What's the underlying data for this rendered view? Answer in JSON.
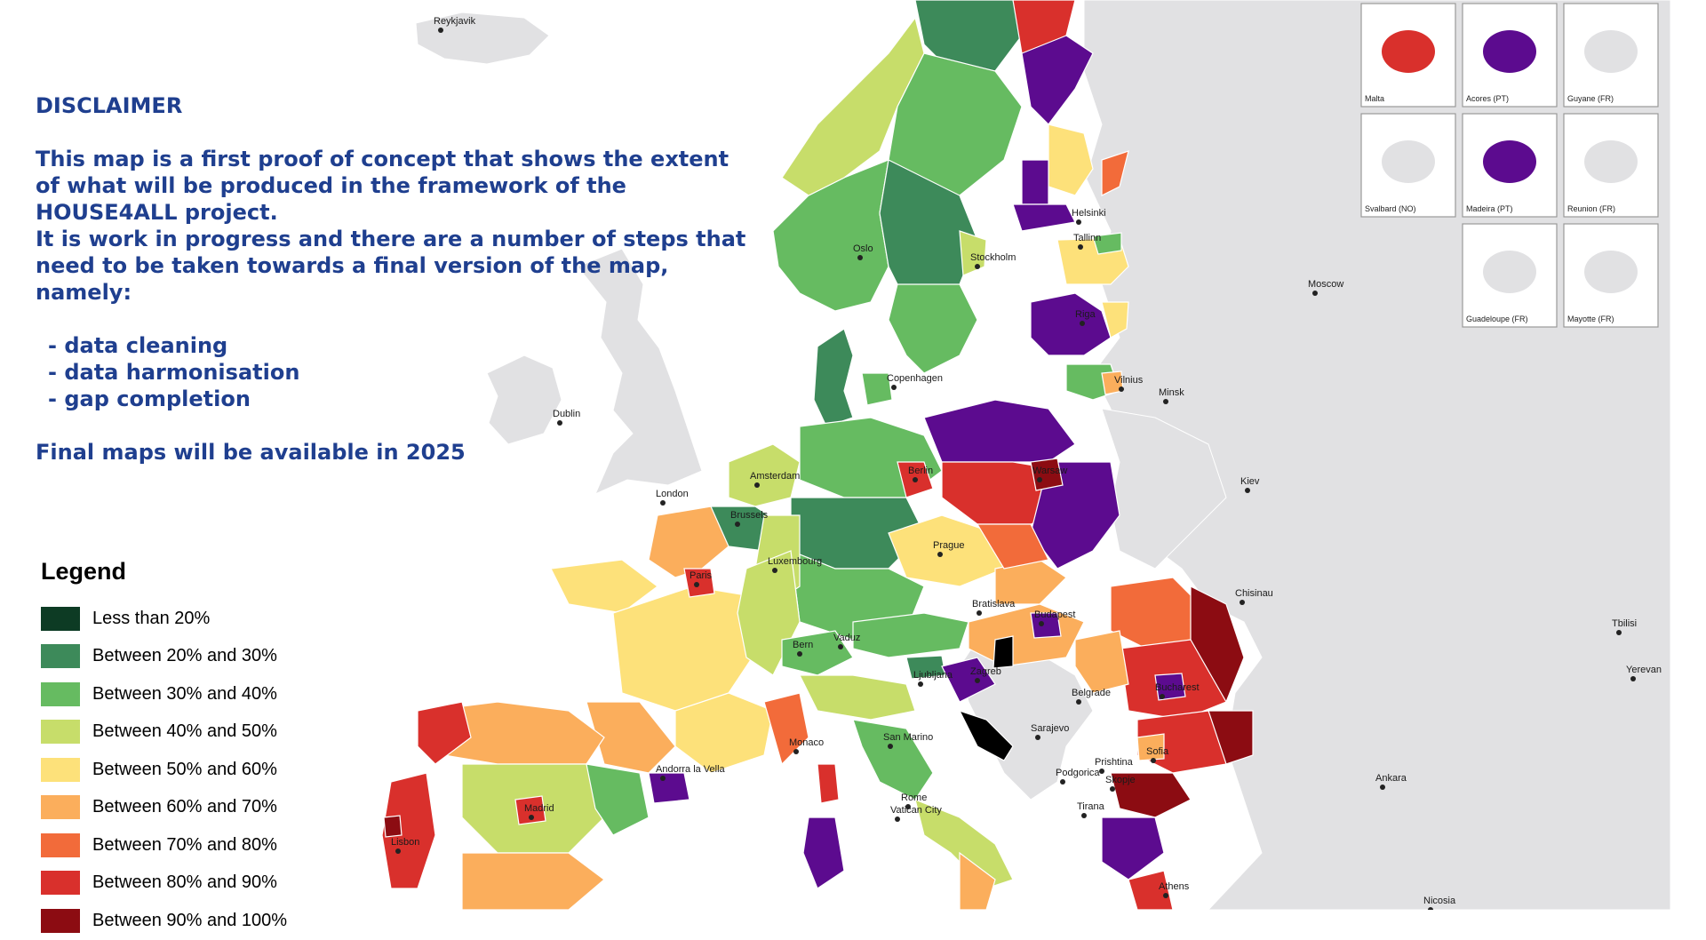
{
  "disclaimer": {
    "title": "DISCLAIMER",
    "lines": [
      "This map is a first proof of concept that shows the extent",
      "of what will be produced in the framework of the",
      "HOUSE4ALL project.",
      "It is work in progress and there are a number of steps that",
      "need to be taken towards a final version of the map,",
      "namely:"
    ],
    "steps": [
      "data cleaning",
      "data harmonisation",
      "gap completion"
    ],
    "final_note": "Final maps will be available in 2025"
  },
  "legend": {
    "title": "Legend",
    "items": [
      {
        "label": "Less than 20%",
        "color": "#0d3b24"
      },
      {
        "label": "Between 20% and 30%",
        "color": "#3d8a5a"
      },
      {
        "label": "Between 30% and 40%",
        "color": "#66bb61"
      },
      {
        "label": "Between 40% and 50%",
        "color": "#c7dd6a"
      },
      {
        "label": "Between 50% and 60%",
        "color": "#fde17a"
      },
      {
        "label": "Between 60% and 70%",
        "color": "#fbae5c"
      },
      {
        "label": "Between 70% and 80%",
        "color": "#f26b3a"
      },
      {
        "label": "Between 80% and 90%",
        "color": "#d9302c"
      },
      {
        "label": "Between 90% and 100%",
        "color": "#8c0c12"
      }
    ]
  },
  "colors": {
    "sea": "#ffffff",
    "land_nodata": "#e1e1e3",
    "border": "#ffffff",
    "text": "#1f3f8f",
    "purple": "#5c0b8f",
    "black": "#000000"
  },
  "cities": [
    {
      "name": "Reykjavik"
    },
    {
      "name": "Oslo"
    },
    {
      "name": "Stockholm"
    },
    {
      "name": "Helsinki"
    },
    {
      "name": "Tallinn"
    },
    {
      "name": "Riga"
    },
    {
      "name": "Moscow"
    },
    {
      "name": "Vilnius"
    },
    {
      "name": "Minsk"
    },
    {
      "name": "Copenhagen"
    },
    {
      "name": "Dublin"
    },
    {
      "name": "London"
    },
    {
      "name": "Amsterdam"
    },
    {
      "name": "Berlin"
    },
    {
      "name": "Warsaw"
    },
    {
      "name": "Kiev"
    },
    {
      "name": "Brussels"
    },
    {
      "name": "Luxembourg"
    },
    {
      "name": "Prague"
    },
    {
      "name": "Paris"
    },
    {
      "name": "Chisinau"
    },
    {
      "name": "Bratislava"
    },
    {
      "name": "Budapest"
    },
    {
      "name": "Vaduz"
    },
    {
      "name": "Bern"
    },
    {
      "name": "Ljubljana"
    },
    {
      "name": "Zagreb"
    },
    {
      "name": "Belgrade"
    },
    {
      "name": "Bucharest"
    },
    {
      "name": "Tbilisi"
    },
    {
      "name": "Yerevan"
    },
    {
      "name": "Sarajevo"
    },
    {
      "name": "San Marino"
    },
    {
      "name": "Monaco"
    },
    {
      "name": "Prishtina"
    },
    {
      "name": "Sofia"
    },
    {
      "name": "Podgorica"
    },
    {
      "name": "Skopje"
    },
    {
      "name": "Andorra la Vella"
    },
    {
      "name": "Tirana"
    },
    {
      "name": "Ankara"
    },
    {
      "name": "Rome"
    },
    {
      "name": "Vatican City"
    },
    {
      "name": "Madrid"
    },
    {
      "name": "Lisbon"
    },
    {
      "name": "Athens"
    },
    {
      "name": "Nicosia"
    }
  ],
  "insets": [
    {
      "label": "Malta"
    },
    {
      "label": "Acores (PT)"
    },
    {
      "label": "Guyane (FR)"
    },
    {
      "label": "Svalbard (NO)"
    },
    {
      "label": "Madeira (PT)"
    },
    {
      "label": "Reunion (FR)"
    },
    {
      "label": "Guadeloupe (FR)"
    },
    {
      "label": "Mayotte (FR)"
    }
  ]
}
